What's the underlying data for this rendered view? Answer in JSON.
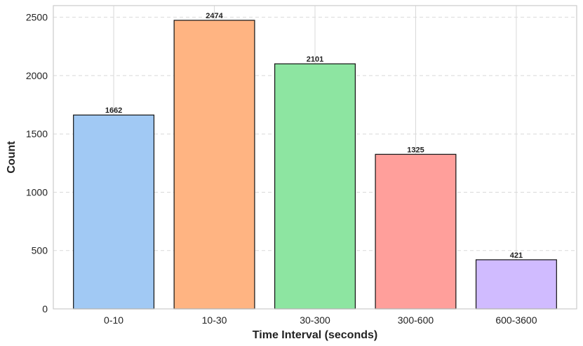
{
  "chart_data": {
    "type": "bar",
    "title": "",
    "xlabel": "Time Interval (seconds)",
    "ylabel": "Count",
    "categories": [
      "0-10",
      "10-30",
      "30-300",
      "300-600",
      "600-3600"
    ],
    "values": [
      1662,
      2474,
      2101,
      1325,
      421
    ],
    "data_labels": [
      "1662",
      "2474",
      "2101",
      "1325",
      "421"
    ],
    "colors": [
      "#a1c9f4",
      "#ffb482",
      "#8de5a1",
      "#ff9f9b",
      "#d0bbff"
    ],
    "ylim": [
      0,
      2600
    ],
    "yticks": [
      0,
      500,
      1000,
      1500,
      2000,
      2500
    ],
    "grid": true,
    "legend": "none"
  }
}
